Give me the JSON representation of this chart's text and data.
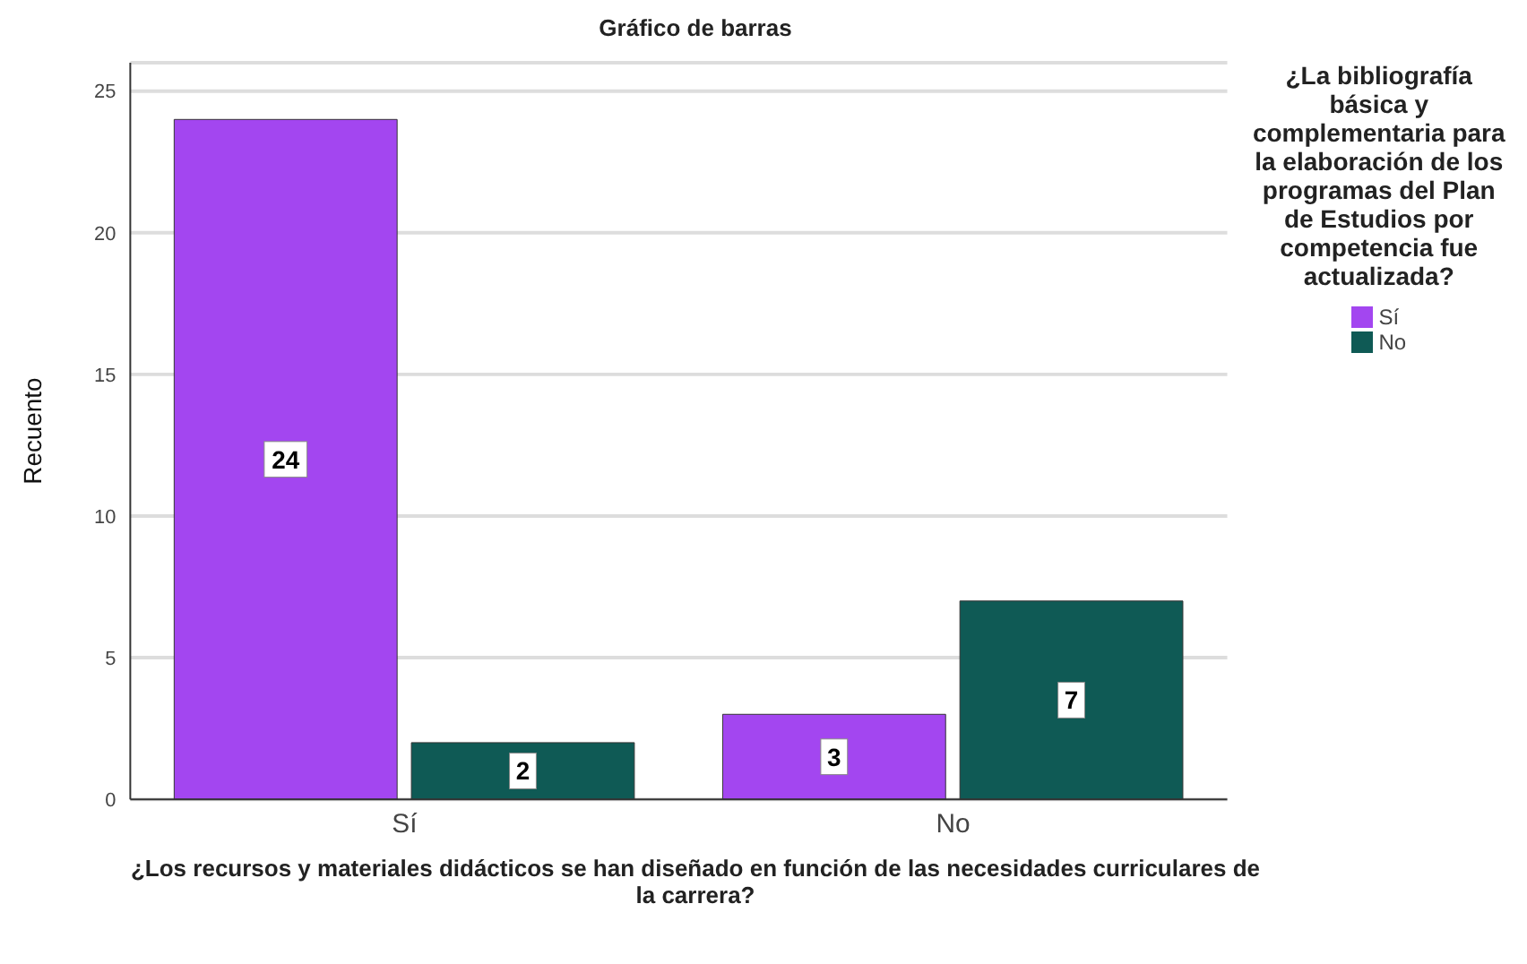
{
  "chart_data": {
    "type": "bar",
    "title": "Gráfico de barras",
    "xlabel": "¿Los recursos y materiales didácticos se han diseñado en función de las necesidades curriculares de la carrera?",
    "ylabel": "Recuento",
    "legend_title": "¿La bibliografía básica y complementaria para la elaboración de los programas del Plan de Estudios por competencia fue actualizada?",
    "categories": [
      "Sí",
      "No"
    ],
    "series": [
      {
        "name": "Sí",
        "color": "#a346f0",
        "values": [
          24,
          3
        ]
      },
      {
        "name": "No",
        "color": "#0f5a55",
        "values": [
          2,
          7
        ]
      }
    ],
    "ylim": [
      0,
      26
    ],
    "yticks": [
      0,
      5,
      10,
      15,
      20,
      25
    ],
    "grid": "y",
    "legend": "right",
    "data_labels": true
  }
}
